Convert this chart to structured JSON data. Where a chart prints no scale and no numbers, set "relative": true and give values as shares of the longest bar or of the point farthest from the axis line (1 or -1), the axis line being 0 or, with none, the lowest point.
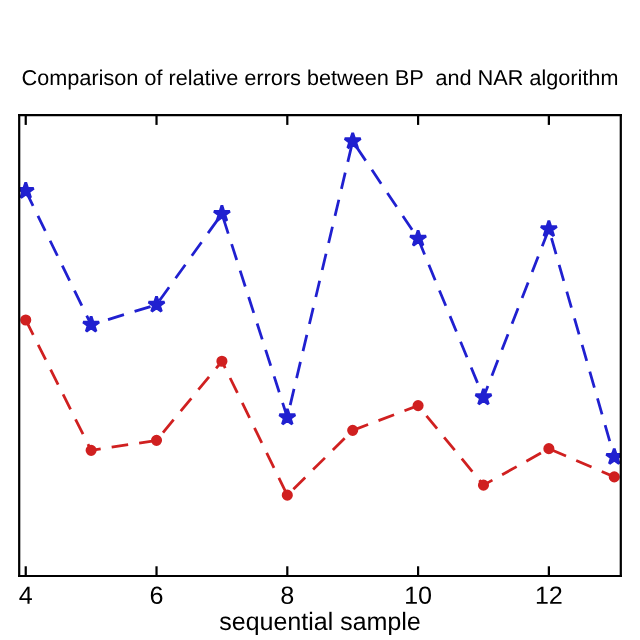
{
  "chart_data": {
    "type": "line",
    "title": "Comparison of relative errors between BP  and NAR algorithm",
    "xlabel": "sequential sample",
    "relative": true,
    "x": [
      4,
      5,
      6,
      7,
      8,
      9,
      10,
      11,
      12,
      13
    ],
    "xlim": [
      3.9,
      13.1
    ],
    "xticks": [
      4,
      6,
      8,
      10,
      12
    ],
    "line_style": "dashed",
    "grid": false,
    "legend": false,
    "series": [
      {
        "color": "#2020d0",
        "marker": "star",
        "values": [
          0.886,
          0.578,
          0.624,
          0.833,
          0.365,
          1,
          0.776,
          0.411,
          0.798,
          0.274
        ]
      },
      {
        "color": "#d02020",
        "marker": "circle",
        "values": [
          0.589,
          0.289,
          0.312,
          0.494,
          0.186,
          0.335,
          0.392,
          0.209,
          0.293,
          0.228
        ]
      }
    ]
  }
}
